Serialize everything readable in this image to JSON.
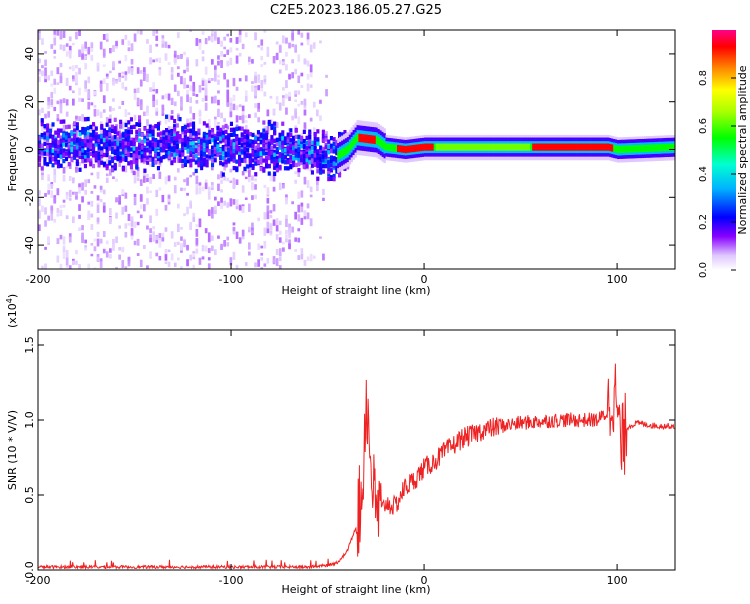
{
  "title": "C2E5.2023.186.05.27.G25",
  "chart_data": [
    {
      "type": "heatmap",
      "xlabel": "Height of straight line (km)",
      "ylabel": "Frequency (Hz)",
      "xlim": [
        -200,
        130
      ],
      "ylim": [
        -50,
        50
      ],
      "x_ticks": [
        -200,
        -100,
        0,
        100
      ],
      "y_ticks": [
        -40,
        -20,
        0,
        20,
        40
      ],
      "colorbar": {
        "label": "Normalized spectral amplitude",
        "range": [
          0,
          1
        ],
        "ticks": [
          "0.0",
          "0.2",
          "0.4",
          "0.6",
          "0.8"
        ]
      },
      "track": [
        {
          "x": -200,
          "f": 2
        },
        {
          "x": -150,
          "f": 2
        },
        {
          "x": -100,
          "f": 1
        },
        {
          "x": -70,
          "f": 0
        },
        {
          "x": -55,
          "f": -2
        },
        {
          "x": -48,
          "f": -4
        },
        {
          "x": -40,
          "f": 0
        },
        {
          "x": -35,
          "f": 5
        },
        {
          "x": -25,
          "f": 4
        },
        {
          "x": -20,
          "f": 1
        },
        {
          "x": -10,
          "f": 0
        },
        {
          "x": 0,
          "f": 1
        },
        {
          "x": 20,
          "f": 1
        },
        {
          "x": 60,
          "f": 1
        },
        {
          "x": 95,
          "f": 1
        },
        {
          "x": 100,
          "f": 0
        },
        {
          "x": 130,
          "f": 1
        }
      ]
    },
    {
      "type": "line",
      "xlabel": "Height of straight line (km)",
      "ylabel": "SNR (10 * V/V)",
      "scale_label": "(x10",
      "scale_exp": "4",
      "scale_close": ")",
      "xlim": [
        -200,
        130
      ],
      "ylim": [
        0,
        1.6
      ],
      "x_ticks": [
        -200,
        -100,
        0,
        100
      ],
      "y_ticks": [
        "0.0",
        "0.5",
        "1.0",
        "1.5"
      ],
      "series": [
        {
          "color": "#ee2222",
          "x": [
            -200,
            -180,
            -160,
            -140,
            -120,
            -100,
            -80,
            -60,
            -50,
            -45,
            -40,
            -35,
            -32,
            -30,
            -28,
            -26,
            -25,
            -22,
            -20,
            -15,
            -10,
            -5,
            0,
            5,
            10,
            15,
            20,
            25,
            30,
            40,
            50,
            60,
            70,
            80,
            90,
            95,
            98,
            100,
            102,
            105,
            110,
            120,
            130
          ],
          "values": [
            0.02,
            0.02,
            0.02,
            0.02,
            0.02,
            0.02,
            0.02,
            0.02,
            0.03,
            0.05,
            0.12,
            0.3,
            0.5,
            1.2,
            0.8,
            0.5,
            0.4,
            0.38,
            0.45,
            0.42,
            0.55,
            0.6,
            0.68,
            0.72,
            0.78,
            0.83,
            0.88,
            0.9,
            0.93,
            0.96,
            0.98,
            0.99,
            1.0,
            1.0,
            1.0,
            1.05,
            1.2,
            1.1,
            0.8,
            0.95,
            0.98,
            0.96,
            0.96
          ]
        }
      ]
    }
  ]
}
